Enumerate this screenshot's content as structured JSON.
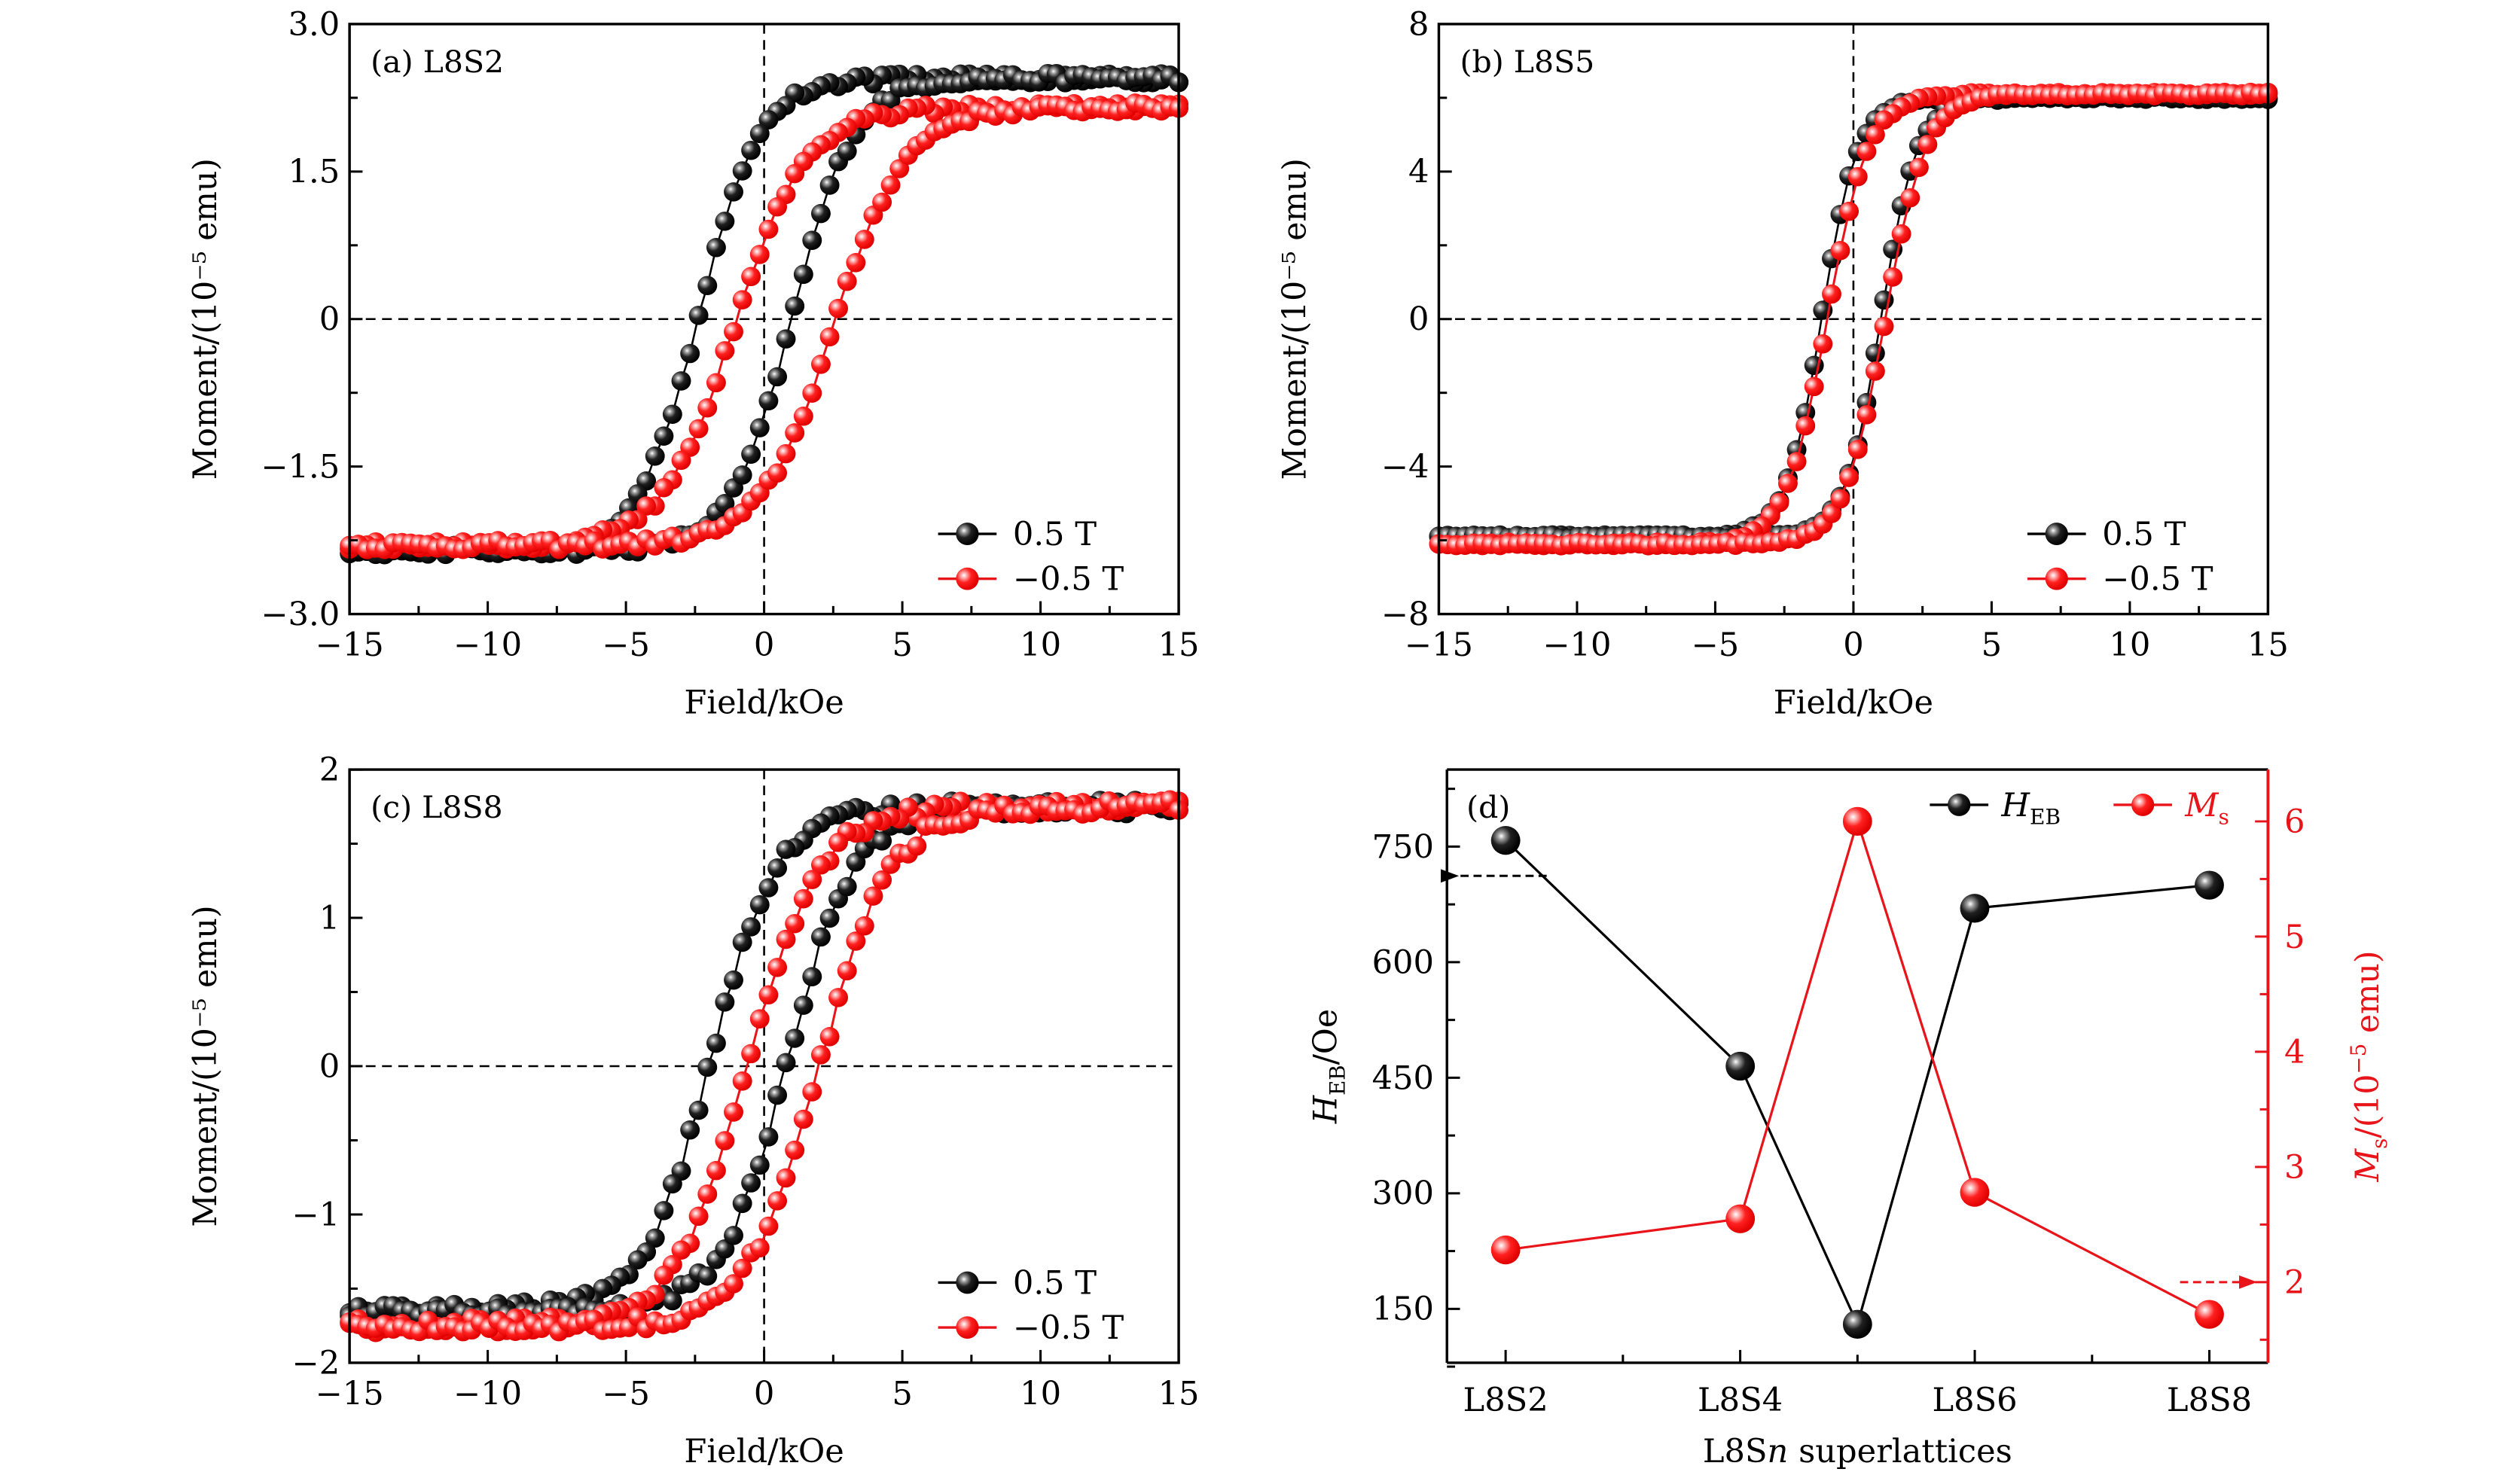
{
  "figure": {
    "colors": {
      "black_series": "#000000",
      "red_series": "#e8141a"
    }
  },
  "chart_data": [
    {
      "id": "a",
      "type": "scatter",
      "panel_label": "(a) L8S2",
      "xlabel": "Field/kOe",
      "ylabel": "Moment/(10⁻⁵ emu)",
      "xlim": [
        -15,
        15
      ],
      "ylim": [
        -3.0,
        3.0
      ],
      "xticks": [
        -15,
        -10,
        -5,
        0,
        5,
        10,
        15
      ],
      "xtick_labels": [
        "−15",
        "−10",
        "−5",
        "0",
        "5",
        "10",
        "15"
      ],
      "yticks": [
        -3.0,
        -1.5,
        0,
        1.5,
        3.0
      ],
      "ytick_labels": [
        "−3.0",
        "−1.5",
        "0",
        "1.5",
        "3.0"
      ],
      "legend": [
        "0.5 T",
        "−0.5 T"
      ],
      "legend_position": "bottom-right",
      "series": [
        {
          "name": "0.5 T",
          "color": "black",
          "Ms_pos": 2.45,
          "Ms_neg": -2.35,
          "Hc_desc": -2.4,
          "Hc_asc": 1.0,
          "width": 2.2
        },
        {
          "name": "−0.5 T",
          "color": "red",
          "Ms_pos": 2.15,
          "Ms_neg": -2.3,
          "Hc_desc": -1.0,
          "Hc_asc": 2.6,
          "width": 2.6
        }
      ]
    },
    {
      "id": "b",
      "type": "scatter",
      "panel_label": "(b) L8S5",
      "xlabel": "Field/kOe",
      "ylabel": "Moment/(10⁻⁵ emu)",
      "xlim": [
        -15,
        15
      ],
      "ylim": [
        -8,
        8
      ],
      "xticks": [
        -15,
        -10,
        -5,
        0,
        5,
        10,
        15
      ],
      "xtick_labels": [
        "−15",
        "−10",
        "−5",
        "0",
        "5",
        "10",
        "15"
      ],
      "yticks": [
        -8,
        -4,
        0,
        4,
        8
      ],
      "ytick_labels": [
        "−8",
        "−4",
        "0",
        "4",
        "8"
      ],
      "legend": [
        "0.5 T",
        "−0.5 T"
      ],
      "legend_position": "bottom-right",
      "series": [
        {
          "name": "0.5 T",
          "color": "black",
          "Ms_pos": 6.0,
          "Ms_neg": -5.9,
          "Hc_desc": -1.15,
          "Hc_asc": 1.0,
          "width": 1.3
        },
        {
          "name": "−0.5 T",
          "color": "red",
          "Ms_pos": 6.1,
          "Ms_neg": -6.1,
          "Hc_desc": -0.95,
          "Hc_asc": 1.15,
          "width": 1.5
        }
      ]
    },
    {
      "id": "c",
      "type": "scatter",
      "panel_label": "(c) L8S8",
      "xlabel": "Field/kOe",
      "ylabel": "Moment/(10⁻⁵ emu)",
      "xlim": [
        -15,
        15
      ],
      "ylim": [
        -2,
        2
      ],
      "xticks": [
        -15,
        -10,
        -5,
        0,
        5,
        10,
        15
      ],
      "xtick_labels": [
        "−15",
        "−10",
        "−5",
        "0",
        "5",
        "10",
        "15"
      ],
      "yticks": [
        -2,
        -1,
        0,
        1,
        2
      ],
      "ytick_labels": [
        "−2",
        "−1",
        "0",
        "1",
        "2"
      ],
      "legend": [
        "0.5 T",
        "−0.5 T"
      ],
      "legend_position": "bottom-right",
      "series": [
        {
          "name": "0.5 T",
          "color": "black",
          "Ms_pos": 1.75,
          "Ms_neg": -1.65,
          "Hc_desc": -2.0,
          "Hc_asc": 0.8,
          "width": 2.4
        },
        {
          "name": "−0.5 T",
          "color": "red",
          "Ms_pos": 1.75,
          "Ms_neg": -1.75,
          "Hc_desc": -0.6,
          "Hc_asc": 2.0,
          "width": 2.6
        }
      ]
    },
    {
      "id": "d",
      "type": "line",
      "panel_label": "(d)",
      "xlabel": "L8Sn superlattices",
      "xlabel_parts": [
        "L8S",
        "n",
        " superlattices"
      ],
      "ylabel_left": "H_EB/Oe",
      "ylabel_left_parts": [
        "H",
        "EB",
        "/Oe"
      ],
      "ylabel_right": "M_s/(10⁻⁵ emu)",
      "ylabel_right_parts": [
        "M",
        "s",
        "/(10",
        "−5",
        " emu)"
      ],
      "categories": [
        "L8S2",
        "L8S4",
        "L8S6",
        "L8S8"
      ],
      "category_positions": [
        2,
        4,
        6,
        8
      ],
      "x": [
        2,
        4,
        5,
        6,
        8
      ],
      "xlim": [
        1.5,
        8.5
      ],
      "ylim_left": [
        80,
        850
      ],
      "yticks_left": [
        150,
        300,
        450,
        600,
        750
      ],
      "ylim_right": [
        1.3,
        6.45
      ],
      "yticks_right": [
        2,
        3,
        4,
        5,
        6
      ],
      "legend": [
        "H_EB",
        "M_s"
      ],
      "legend_position": "top-right",
      "series": [
        {
          "name": "H_EB",
          "axis": "left",
          "color": "black",
          "values": [
            758,
            465,
            130,
            670,
            700
          ]
        },
        {
          "name": "M_s",
          "axis": "right",
          "color": "red",
          "values": [
            2.28,
            2.55,
            6.0,
            2.78,
            1.72
          ]
        }
      ],
      "annotations": [
        {
          "type": "arrow",
          "direction": "left",
          "series": "H_EB",
          "points_to": "left axis"
        },
        {
          "type": "arrow",
          "direction": "right",
          "series": "M_s",
          "points_to": "right axis"
        }
      ]
    }
  ]
}
